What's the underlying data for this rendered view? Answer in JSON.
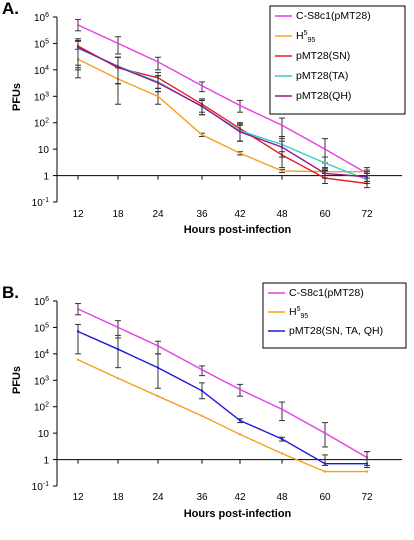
{
  "chart_data": [
    {
      "panel": "A.",
      "type": "line",
      "x": [
        "12",
        "18",
        "24",
        "36",
        "42",
        "48",
        "60",
        "72"
      ],
      "xlabel": "Hours post-infection",
      "ylabel": "PFUs",
      "yscale": "log",
      "ylim": [
        0.1,
        1000000
      ],
      "yticks": [
        "10-1",
        "1",
        "10",
        "102",
        "103",
        "104",
        "105",
        "106"
      ],
      "grid": false,
      "legend": "top-right",
      "series": [
        {
          "name": "C-S8c1(pMT28)",
          "color": "#e63ee6",
          "values": [
            500000,
            100000,
            20000,
            2500,
            450,
            80,
            10,
            1.2
          ],
          "err": [
            [
              300000,
              800000
            ],
            [
              40000,
              180000
            ],
            [
              10000,
              30000
            ],
            [
              1500,
              3500
            ],
            [
              250,
              700
            ],
            [
              30,
              150
            ],
            [
              3,
              25
            ],
            [
              0.6,
              2
            ]
          ]
        },
        {
          "name": "H595",
          "color": "#f5a020",
          "values": [
            25000,
            4500,
            1000,
            35,
            7,
            1.5,
            1.4,
            1.4
          ],
          "err": [
            [
              5000,
              60000
            ],
            [
              500,
              12000
            ],
            [
              500,
              2000
            ],
            [
              30,
              40
            ],
            [
              6,
              8
            ],
            [
              1.3,
              1.7
            ],
            [
              1.2,
              1.6
            ],
            [
              1.2,
              1.6
            ]
          ]
        },
        {
          "name": "pMT28(SN)",
          "color": "#e81c24",
          "values": [
            80000,
            12000,
            5000,
            500,
            60,
            6,
            0.8,
            0.5
          ],
          "err": [
            [
              15000,
              150000
            ],
            [
              3000,
              30000
            ],
            [
              2000,
              8000
            ],
            [
              250,
              800
            ],
            [
              20,
              100
            ],
            [
              2,
              20
            ],
            [
              0.5,
              1.8
            ],
            [
              0.35,
              0.8
            ]
          ]
        },
        {
          "name": "pMT28(TA)",
          "color": "#3cc8c8",
          "values": [
            65000,
            14000,
            3500,
            400,
            50,
            15,
            3,
            0.7
          ],
          "err": [
            [
              10000,
              120000
            ],
            [
              3000,
              30000
            ],
            [
              1500,
              6000
            ],
            [
              200,
              700
            ],
            [
              20,
              90
            ],
            [
              8,
              30
            ],
            [
              1.5,
              5
            ],
            [
              0.5,
              1
            ]
          ]
        },
        {
          "name": "pMT28(QH)",
          "color": "#8c1a8c",
          "values": [
            70000,
            13000,
            3200,
            420,
            45,
            12,
            1.2,
            0.9
          ],
          "err": [
            [
              12000,
              130000
            ],
            [
              3000,
              30000
            ],
            [
              1500,
              6000
            ],
            [
              200,
              700
            ],
            [
              20,
              80
            ],
            [
              5,
              25
            ],
            [
              0.8,
              2
            ],
            [
              0.6,
              1.4
            ]
          ]
        }
      ]
    },
    {
      "panel": "B.",
      "type": "line",
      "x": [
        "12",
        "18",
        "24",
        "36",
        "42",
        "48",
        "60",
        "72"
      ],
      "xlabel": "Hours post-infection",
      "ylabel": "PFUs",
      "yscale": "log",
      "ylim": [
        0.1,
        1000000
      ],
      "yticks": [
        "10-1",
        "1",
        "10",
        "102",
        "103",
        "104",
        "105",
        "106"
      ],
      "grid": false,
      "legend": "top-right",
      "series": [
        {
          "name": "C-S8c1(pMT28)",
          "color": "#e63ee6",
          "values": [
            500000,
            100000,
            20000,
            2500,
            450,
            80,
            10,
            1.2
          ],
          "err": [
            [
              300000,
              800000
            ],
            [
              40000,
              180000
            ],
            [
              10000,
              30000
            ],
            [
              1500,
              3500
            ],
            [
              250,
              700
            ],
            [
              30,
              150
            ],
            [
              3,
              25
            ],
            [
              0.6,
              2
            ]
          ]
        },
        {
          "name": "H595",
          "color": "#f5a020",
          "values": [
            6000,
            1200,
            250,
            45,
            9,
            1.7,
            0.35,
            0.35
          ],
          "err": null
        },
        {
          "name": "pMT28(SN, TA, QH)",
          "color": "#1a1ad8",
          "values": [
            70000,
            15000,
            3000,
            400,
            30,
            6,
            0.7,
            0.7
          ],
          "err": [
            [
              10000,
              130000
            ],
            [
              3000,
              50000
            ],
            [
              500,
              10000
            ],
            [
              200,
              800
            ],
            [
              25,
              35
            ],
            [
              5,
              7
            ],
            [
              0.6,
              1.5
            ],
            [
              0.5,
              2
            ]
          ]
        }
      ]
    }
  ]
}
